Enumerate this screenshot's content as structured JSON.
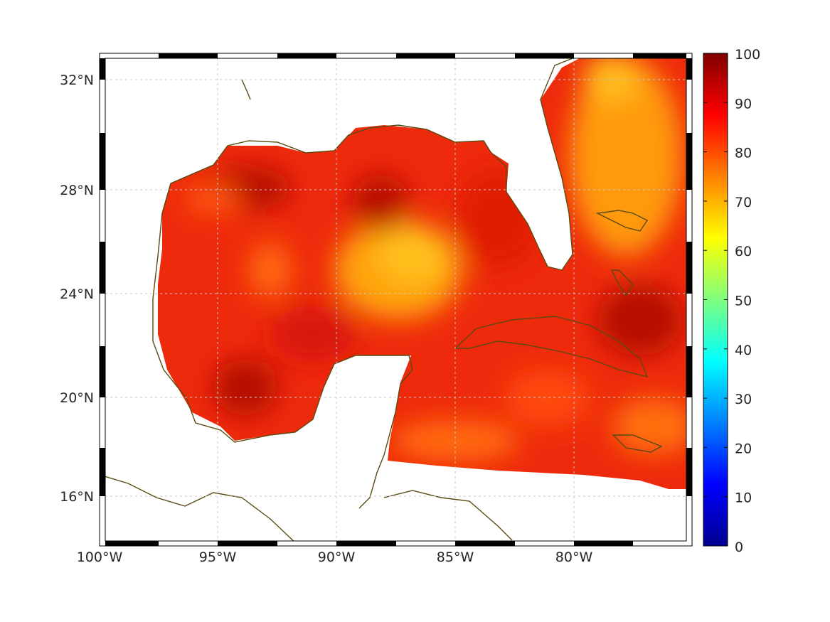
{
  "map": {
    "lon_range": [
      -100,
      -75
    ],
    "lat_range": [
      14,
      33
    ],
    "lon_ticks": [
      {
        "value": -100,
        "label": "100°W"
      },
      {
        "value": -95,
        "label": "95°W"
      },
      {
        "value": -90,
        "label": "90°W"
      },
      {
        "value": -85,
        "label": "85°W"
      },
      {
        "value": -80,
        "label": "80°W"
      }
    ],
    "lat_ticks": [
      {
        "value": 32,
        "label": "32°N"
      },
      {
        "value": 28,
        "label": "28°N"
      },
      {
        "value": 24,
        "label": "24°N"
      },
      {
        "value": 20,
        "label": "20°N"
      },
      {
        "value": 16,
        "label": "16°N"
      }
    ],
    "grid": true,
    "projection": "mercator",
    "coastline_color": "#5a4a12",
    "land_color": "#ffffff"
  },
  "colorbar": {
    "min": 0,
    "max": 100,
    "ticks": [
      "0",
      "10",
      "20",
      "30",
      "40",
      "50",
      "60",
      "70",
      "80",
      "90",
      "100"
    ],
    "colormap": "jet",
    "position": "right"
  },
  "field": {
    "typical_range": [
      70,
      100
    ],
    "description_hint": "values mostly 75–98"
  }
}
